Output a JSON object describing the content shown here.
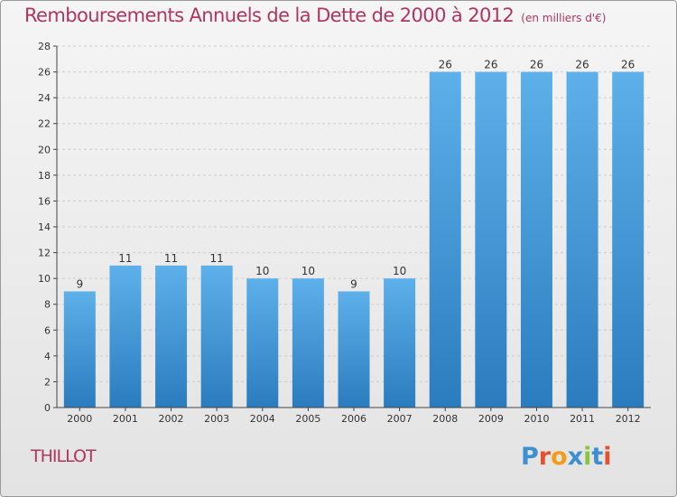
{
  "title": "Remboursements Annuels de la Dette de 2000 à 2012",
  "title_unit": "(en milliers d'€)",
  "commune": "THILLOT",
  "logo": {
    "text": "Proxiti",
    "letter_colors": [
      "#3d8fd1",
      "#e8502a",
      "#f39c19",
      "#3d8fd1",
      "#8bc43f",
      "#3d8fd1",
      "#e8502a"
    ]
  },
  "colors": {
    "bar_top": "#5eb0ea",
    "bar_bottom": "#2a7cbe",
    "title": "#b0355f",
    "grid": "#cccccc",
    "axis": "#444444"
  },
  "chart_data": {
    "type": "bar",
    "categories": [
      "2000",
      "2001",
      "2002",
      "2003",
      "2004",
      "2005",
      "2006",
      "2007",
      "2008",
      "2009",
      "2010",
      "2011",
      "2012"
    ],
    "values": [
      9,
      11,
      11,
      11,
      10,
      10,
      9,
      10,
      26,
      26,
      26,
      26,
      26
    ],
    "ylim": [
      0,
      28
    ],
    "yticks": [
      0,
      2,
      4,
      6,
      8,
      10,
      12,
      14,
      16,
      18,
      20,
      22,
      24,
      26,
      28
    ],
    "grid": true,
    "data_labels": true
  }
}
